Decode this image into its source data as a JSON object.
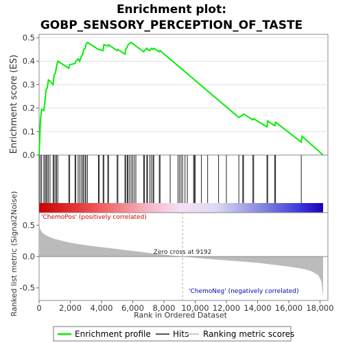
{
  "chart_data": {
    "type": "line",
    "title_line1": "Enrichment plot:",
    "title_line2": "GOBP_SENSORY_PERCEPTION_OF_TASTE",
    "top_panel": {
      "ylabel": "Enrichment score (ES)",
      "ylim": [
        0,
        0.5
      ],
      "yticks": [
        "0.0",
        "0.1",
        "0.2",
        "0.3",
        "0.4",
        "0.5"
      ],
      "series": [
        {
          "name": "Enrichment profile",
          "color": "#00ee00",
          "x": [
            0,
            80,
            160,
            300,
            380,
            450,
            520,
            600,
            700,
            900,
            960,
            1050,
            1120,
            1200,
            1900,
            1960,
            2300,
            2350,
            2500,
            2600,
            2700,
            2800,
            2850,
            2950,
            3000,
            3100,
            3800,
            3850,
            4100,
            4150,
            4400,
            4450,
            5000,
            5050,
            5500,
            5550,
            5650,
            5700,
            5800,
            5900,
            6000,
            6100,
            6200,
            6700,
            6750,
            6900,
            6950,
            7100,
            7200,
            7300,
            7350,
            7700,
            7750,
            12800,
            13050,
            13100,
            13700,
            13750,
            14600,
            14650,
            15100,
            15150,
            16800,
            16850,
            18200
          ],
          "y": [
            0.0,
            0.14,
            0.195,
            0.19,
            0.23,
            0.28,
            0.285,
            0.32,
            0.315,
            0.3,
            0.34,
            0.35,
            0.38,
            0.4,
            0.37,
            0.385,
            0.39,
            0.4,
            0.41,
            0.4,
            0.42,
            0.43,
            0.45,
            0.455,
            0.47,
            0.48,
            0.45,
            0.45,
            0.445,
            0.47,
            0.465,
            0.47,
            0.445,
            0.45,
            0.43,
            0.45,
            0.46,
            0.47,
            0.475,
            0.48,
            0.475,
            0.47,
            0.465,
            0.44,
            0.445,
            0.455,
            0.45,
            0.445,
            0.455,
            0.45,
            0.455,
            0.44,
            0.445,
            0.16,
            0.17,
            0.175,
            0.15,
            0.155,
            0.12,
            0.145,
            0.125,
            0.14,
            0.055,
            0.08,
            0.0
          ]
        }
      ]
    },
    "hits": [
      0,
      80,
      160,
      300,
      380,
      450,
      520,
      600,
      700,
      900,
      960,
      1050,
      1120,
      1200,
      1900,
      1960,
      2300,
      2350,
      2500,
      2600,
      2700,
      2800,
      2850,
      2950,
      3000,
      3100,
      3800,
      3850,
      4100,
      4150,
      4400,
      4450,
      5000,
      5050,
      5500,
      5550,
      5650,
      5700,
      5800,
      5900,
      6000,
      6100,
      6200,
      6700,
      6750,
      6900,
      6950,
      7100,
      7200,
      7300,
      7350,
      7700,
      7750,
      8400,
      8900,
      9000,
      9100,
      9200,
      9350,
      9500,
      9900,
      9950,
      10000,
      10400,
      10800,
      11500,
      12000,
      12800,
      13050,
      13100,
      13700,
      13750,
      14600,
      14650,
      15100,
      15150,
      16800
    ],
    "bottom_panel": {
      "ylabel": "Ranked list metric (Signal2Noise)",
      "xlabel": "Rank in Ordered Dataset",
      "ylim": [
        -0.7,
        0.7
      ],
      "yticks": [
        "0.5",
        "0.0",
        "-0.5"
      ],
      "xticks": [
        "0",
        "2,000",
        "4,000",
        "6,000",
        "8,000",
        "10,000",
        "12,000",
        "14,000",
        "16,000",
        "18,000"
      ],
      "xlim": [
        0,
        18200
      ],
      "zero_cross": 9192,
      "zero_cross_label": "Zero cross at 9192",
      "pos_label": "'ChemoPos' (positively correlated)",
      "neg_label": "'ChemoNeg' (negatively correlated)",
      "metric_profile": {
        "x": [
          0,
          50,
          200,
          500,
          1000,
          2000,
          3000,
          4000,
          5000,
          6000,
          7000,
          8000,
          9192,
          10000,
          11000,
          12000,
          13000,
          14000,
          15000,
          16000,
          17000,
          17500,
          17900,
          18100,
          18200
        ],
        "y": [
          0.6,
          0.45,
          0.38,
          0.33,
          0.28,
          0.22,
          0.18,
          0.15,
          0.12,
          0.09,
          0.06,
          0.03,
          0.0,
          -0.02,
          -0.04,
          -0.06,
          -0.08,
          -0.1,
          -0.13,
          -0.16,
          -0.2,
          -0.24,
          -0.3,
          -0.4,
          -0.65
        ]
      }
    },
    "legend": {
      "items": [
        {
          "label": "Enrichment profile",
          "color": "#00ee00"
        },
        {
          "label": "Hits",
          "color": "#555555"
        },
        {
          "label": "Ranking metric scores",
          "color": "#cccccc"
        }
      ]
    },
    "colors": {
      "profile": "#00ee00",
      "pos_label": "#cc0000",
      "neg_label": "#0000bb",
      "metric_fill": "#bbbbbb"
    }
  }
}
